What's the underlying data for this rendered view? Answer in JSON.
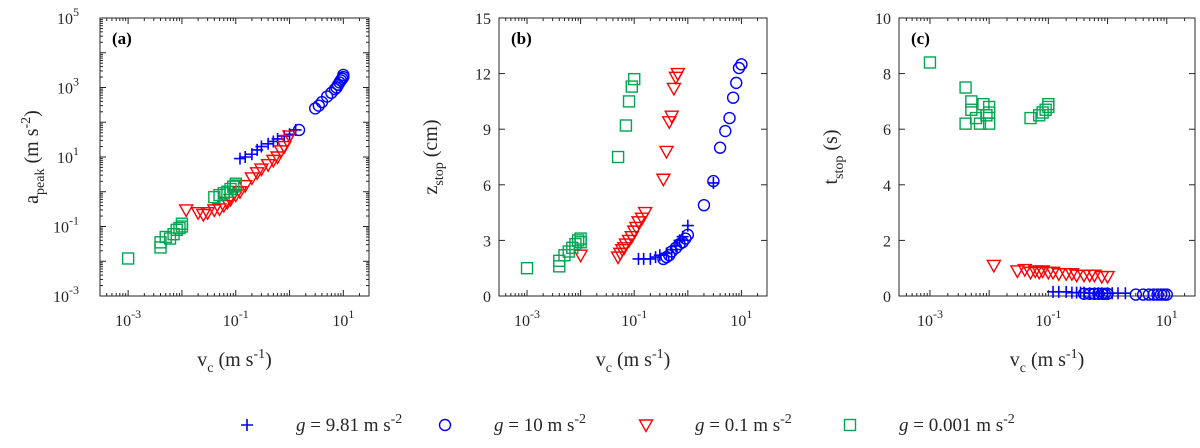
{
  "colors": {
    "g981": "#0000ff",
    "g10": "#0000ff",
    "g01": "#ff0000",
    "g0001": "#00a651",
    "axis": "#262626"
  },
  "legend": {
    "items": [
      {
        "key": "g981",
        "marker": "plus",
        "pre": "g",
        "post": " = 9.81 m s",
        "sup": "-2"
      },
      {
        "key": "g10",
        "marker": "circle",
        "pre": "g",
        "post": " = 10 m s",
        "sup": "-2"
      },
      {
        "key": "g01",
        "marker": "triangle",
        "pre": "g",
        "post": " = 0.1 m s",
        "sup": "-2"
      },
      {
        "key": "g0001",
        "marker": "square",
        "pre": "g",
        "post": " = 0.001 m s",
        "sup": "-2"
      }
    ]
  },
  "chart_data": [
    {
      "type": "scatter",
      "panel": "(a)",
      "xscale": "log",
      "yscale": "log",
      "xlim": [
        0.0003,
        30
      ],
      "ylim": [
        0.001,
        100000
      ],
      "xticks": [
        0.001,
        0.1,
        10
      ],
      "xticklabels": [
        [
          "10",
          "-3"
        ],
        [
          "10",
          "-1"
        ],
        [
          "10",
          "1"
        ]
      ],
      "yticks": [
        0.001,
        0.1,
        10,
        1000,
        100000
      ],
      "yticklabels": [
        [
          "10",
          "-3"
        ],
        [
          "10",
          "-1"
        ],
        [
          "10",
          "1"
        ],
        [
          "10",
          "3"
        ],
        [
          "10",
          "5"
        ]
      ],
      "xlabel": {
        "base": "v",
        "sub": "c",
        "unit": " (m s",
        "sup": "-1",
        "tail": ")"
      },
      "ylabel": {
        "base": "a",
        "sub": "peak",
        "unit": " (m s",
        "sup": "-2",
        "tail": ")"
      },
      "series": [
        {
          "name": "g = 9.81",
          "key": "g981",
          "marker": "plus",
          "x": [
            0.12,
            0.15,
            0.2,
            0.25,
            0.3,
            0.4,
            0.5,
            0.6,
            0.8,
            1.0,
            1.3
          ],
          "y": [
            9,
            10,
            12,
            16,
            20,
            24,
            28,
            33,
            40,
            45,
            60
          ]
        },
        {
          "name": "g = 10",
          "key": "g10",
          "marker": "circle",
          "x": [
            1.5,
            3,
            3.5,
            4,
            5,
            6,
            7,
            7.5,
            8,
            8.5,
            9,
            9.5,
            10,
            10
          ],
          "y": [
            60,
            250,
            300,
            380,
            550,
            700,
            900,
            1000,
            1200,
            1400,
            1600,
            1800,
            2000,
            2300
          ]
        },
        {
          "name": "g = 0.1",
          "key": "g01",
          "marker": "triangle",
          "x": [
            0.012,
            0.02,
            0.025,
            0.03,
            0.04,
            0.05,
            0.06,
            0.07,
            0.08,
            0.1,
            0.12,
            0.15,
            0.2,
            0.25,
            0.3,
            0.4,
            0.5,
            0.6,
            0.7,
            0.8,
            0.9,
            1.0
          ],
          "y": [
            0.3,
            0.25,
            0.22,
            0.25,
            0.3,
            0.32,
            0.4,
            0.5,
            0.6,
            0.8,
            1.0,
            1.5,
            2.5,
            3.5,
            4.5,
            6,
            8,
            10,
            15,
            20,
            30,
            40
          ]
        },
        {
          "name": "g = 0.001",
          "key": "g0001",
          "marker": "square",
          "x": [
            0.001,
            0.004,
            0.004,
            0.005,
            0.006,
            0.007,
            0.008,
            0.009,
            0.01,
            0.01,
            0.04,
            0.05,
            0.06,
            0.07,
            0.08,
            0.09,
            0.1,
            0.1
          ],
          "y": [
            0.012,
            0.025,
            0.035,
            0.05,
            0.045,
            0.06,
            0.08,
            0.09,
            0.1,
            0.12,
            0.7,
            0.8,
            0.9,
            1.0,
            1.2,
            1.4,
            1.5,
            1.7
          ]
        }
      ]
    },
    {
      "type": "scatter",
      "panel": "(b)",
      "xscale": "log",
      "yscale": "linear",
      "xlim": [
        0.0003,
        30
      ],
      "ylim": [
        0,
        15
      ],
      "xticks": [
        0.001,
        0.1,
        10
      ],
      "xticklabels": [
        [
          "10",
          "-3"
        ],
        [
          "10",
          "-1"
        ],
        [
          "10",
          "1"
        ]
      ],
      "yticks": [
        0,
        3,
        6,
        9,
        12,
        15
      ],
      "yticklabels": [
        [
          "0",
          ""
        ],
        [
          "3",
          ""
        ],
        [
          "6",
          ""
        ],
        [
          "9",
          ""
        ],
        [
          "12",
          ""
        ],
        [
          "15",
          ""
        ]
      ],
      "xlabel": {
        "base": "v",
        "sub": "c",
        "unit": " (m s",
        "sup": "-1",
        "tail": ")"
      },
      "ylabel": {
        "base": "z",
        "sub": "stop",
        "unit": " (cm)",
        "sup": "",
        "tail": ""
      },
      "series": [
        {
          "name": "g = 9.81",
          "key": "g981",
          "marker": "plus",
          "x": [
            0.12,
            0.15,
            0.2,
            0.25,
            0.3,
            0.4,
            0.5,
            0.6,
            0.7,
            0.8,
            1.0,
            3.0
          ],
          "y": [
            2.0,
            2.0,
            2.0,
            2.1,
            2.2,
            2.3,
            2.5,
            2.7,
            3.0,
            3.2,
            3.8,
            6.1
          ]
        },
        {
          "name": "g = 10",
          "key": "g10",
          "marker": "circle",
          "x": [
            0.35,
            0.4,
            0.45,
            0.5,
            0.6,
            0.7,
            0.8,
            0.9,
            1.0,
            2.0,
            3.0,
            4.0,
            5.0,
            6.0,
            7.0,
            8.0,
            9.0,
            10.0
          ],
          "y": [
            2.0,
            2.1,
            2.2,
            2.4,
            2.6,
            2.8,
            2.9,
            3.1,
            3.3,
            4.9,
            6.2,
            8.0,
            8.9,
            9.6,
            10.7,
            11.5,
            12.3,
            12.5
          ]
        },
        {
          "name": "g = 0.1",
          "key": "g01",
          "marker": "triangle",
          "x": [
            0.01,
            0.05,
            0.055,
            0.06,
            0.065,
            0.07,
            0.08,
            0.09,
            0.1,
            0.11,
            0.12,
            0.14,
            0.16,
            0.35,
            0.4,
            0.45,
            0.5,
            0.55,
            0.6,
            0.65
          ],
          "y": [
            2.2,
            2.1,
            2.3,
            2.5,
            2.6,
            2.8,
            3.0,
            3.2,
            3.5,
            3.7,
            4.0,
            4.2,
            4.5,
            6.3,
            7.8,
            9.4,
            9.7,
            11.2,
            11.8,
            12.0
          ]
        },
        {
          "name": "g = 0.001",
          "key": "g0001",
          "marker": "square",
          "x": [
            0.001,
            0.004,
            0.004,
            0.005,
            0.006,
            0.007,
            0.008,
            0.009,
            0.01,
            0.01,
            0.05,
            0.07,
            0.08,
            0.09,
            0.1
          ],
          "y": [
            1.5,
            1.6,
            1.9,
            2.2,
            2.4,
            2.6,
            2.8,
            3.0,
            2.9,
            3.1,
            7.5,
            9.2,
            10.5,
            11.3,
            11.7
          ]
        }
      ]
    },
    {
      "type": "scatter",
      "panel": "(c)",
      "xscale": "log",
      "yscale": "linear",
      "xlim": [
        0.0003,
        30
      ],
      "ylim": [
        0,
        10
      ],
      "xticks": [
        0.001,
        0.1,
        10
      ],
      "xticklabels": [
        [
          "10",
          "-3"
        ],
        [
          "10",
          "-1"
        ],
        [
          "10",
          "1"
        ]
      ],
      "yticks": [
        0,
        2,
        4,
        6,
        8,
        10
      ],
      "yticklabels": [
        [
          "0",
          ""
        ],
        [
          "2",
          ""
        ],
        [
          "4",
          ""
        ],
        [
          "6",
          ""
        ],
        [
          "8",
          ""
        ],
        [
          "10",
          ""
        ]
      ],
      "xlabel": {
        "base": "v",
        "sub": "c",
        "unit": " (m s",
        "sup": "-1",
        "tail": ")"
      },
      "ylabel": {
        "base": "t",
        "sub": "stop",
        "unit": " (s)",
        "sup": "",
        "tail": ""
      },
      "series": [
        {
          "name": "g = 9.81",
          "key": "g981",
          "marker": "plus",
          "x": [
            0.12,
            0.15,
            0.2,
            0.25,
            0.3,
            0.35,
            0.4,
            0.5,
            0.6,
            0.7,
            0.8,
            1.0,
            1.2,
            1.5,
            2.0
          ],
          "y": [
            0.15,
            0.15,
            0.15,
            0.12,
            0.12,
            0.12,
            0.12,
            0.1,
            0.1,
            0.1,
            0.1,
            0.1,
            0.1,
            0.1,
            0.1
          ]
        },
        {
          "name": "g = 10",
          "key": "g10",
          "marker": "circle",
          "x": [
            0.4,
            0.5,
            0.6,
            0.7,
            0.8,
            0.9,
            1.0,
            3.0,
            4.0,
            5.0,
            6.0,
            7.0,
            8.0,
            9.0,
            10.0
          ],
          "y": [
            0.08,
            0.08,
            0.08,
            0.08,
            0.08,
            0.08,
            0.08,
            0.05,
            0.05,
            0.05,
            0.05,
            0.05,
            0.05,
            0.05,
            0.05
          ]
        },
        {
          "name": "g = 0.1",
          "key": "g01",
          "marker": "triangle",
          "x": [
            0.012,
            0.03,
            0.04,
            0.05,
            0.06,
            0.07,
            0.08,
            0.1,
            0.12,
            0.15,
            0.2,
            0.25,
            0.3,
            0.4,
            0.5,
            0.6,
            0.8,
            1.0
          ],
          "y": [
            1.1,
            0.9,
            0.95,
            0.85,
            0.9,
            0.85,
            0.9,
            0.85,
            0.85,
            0.8,
            0.8,
            0.8,
            0.75,
            0.75,
            0.75,
            0.75,
            0.7,
            0.7
          ]
        },
        {
          "name": "g = 0.001",
          "key": "g0001",
          "marker": "square",
          "x": [
            0.001,
            0.004,
            0.004,
            0.005,
            0.005,
            0.006,
            0.007,
            0.008,
            0.009,
            0.01,
            0.01,
            0.01,
            0.05,
            0.07,
            0.08,
            0.09,
            0.1,
            0.1
          ],
          "y": [
            8.4,
            7.5,
            6.2,
            7.0,
            6.7,
            6.4,
            6.2,
            6.9,
            6.5,
            6.8,
            6.6,
            6.2,
            6.4,
            6.5,
            6.6,
            6.7,
            6.9,
            6.8
          ]
        }
      ]
    }
  ]
}
